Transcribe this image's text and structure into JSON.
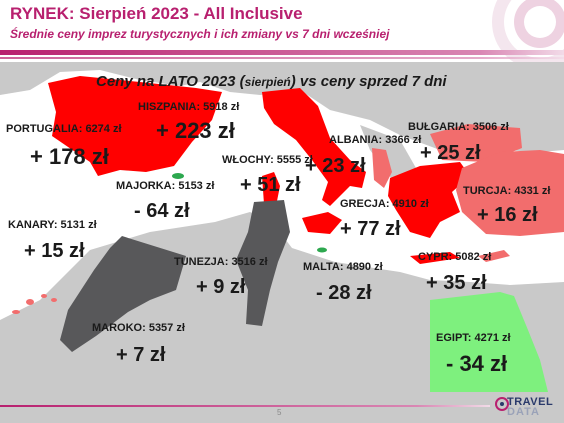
{
  "header": {
    "title": "RYNEK: Sierpień 2023 - All Inclusive",
    "subtitle": "Średnie ceny imprez turystycznych i ich zmiany vs 7 dni wcześniej"
  },
  "map_title": {
    "before": "Ceny na LATO 2023 (",
    "small": "sierpień",
    "after": ") vs ceny sprzed 7 dni"
  },
  "colors": {
    "brand": "#b8206f",
    "increase_strong": "#ff0000",
    "increase_mild": "#f26d6d",
    "decrease": "#58585a",
    "land": "#c9c9c9",
    "sea": "#ffffff",
    "egypt": "#7ef07e",
    "majorka_dot": "#2da84f"
  },
  "destinations": [
    {
      "id": "portugalia",
      "label": "PORTUGALIA: 6274 zł",
      "change": "+ 178 zł"
    },
    {
      "id": "hiszpania",
      "label": "HISZPANIA: 5918 zł",
      "change": "+ 223 zł"
    },
    {
      "id": "majorka",
      "label": "MAJORKA: 5153 zł",
      "change": "- 64 zł"
    },
    {
      "id": "wlochy",
      "label": "WŁOCHY: 5555 zł",
      "change": "+ 51 zł"
    },
    {
      "id": "albania",
      "label": "ALBANIA: 3366 zł",
      "change": "+ 23 zł"
    },
    {
      "id": "bulgaria",
      "label": "BUŁGARIA: 3506 zł",
      "change": "+ 25 zł"
    },
    {
      "id": "turcja",
      "label": "TURCJA: 4331 zł",
      "change": "+ 16 zł"
    },
    {
      "id": "grecja",
      "label": "GRECJA: 4910 zł",
      "change": "+ 77 zł"
    },
    {
      "id": "kanary",
      "label": "KANARY: 5131 zł",
      "change": "+ 15 zł"
    },
    {
      "id": "tunezja",
      "label": "TUNEZJA: 3516 zł",
      "change": "+ 9 zł"
    },
    {
      "id": "malta",
      "label": "MALTA: 4890 zł",
      "change": "- 28 zł"
    },
    {
      "id": "cypr",
      "label": "CYPR: 5082 zł",
      "change": "+ 35 zł"
    },
    {
      "id": "maroko",
      "label": "MAROKO: 5357 zł",
      "change": "+ 7 zł"
    },
    {
      "id": "egipt",
      "label": "EGIPT: 4271 zł",
      "change": "- 34 zł"
    }
  ],
  "footer": {
    "page_number": "5",
    "logo_line1": "TRAVEL",
    "logo_line2": "DATA"
  }
}
